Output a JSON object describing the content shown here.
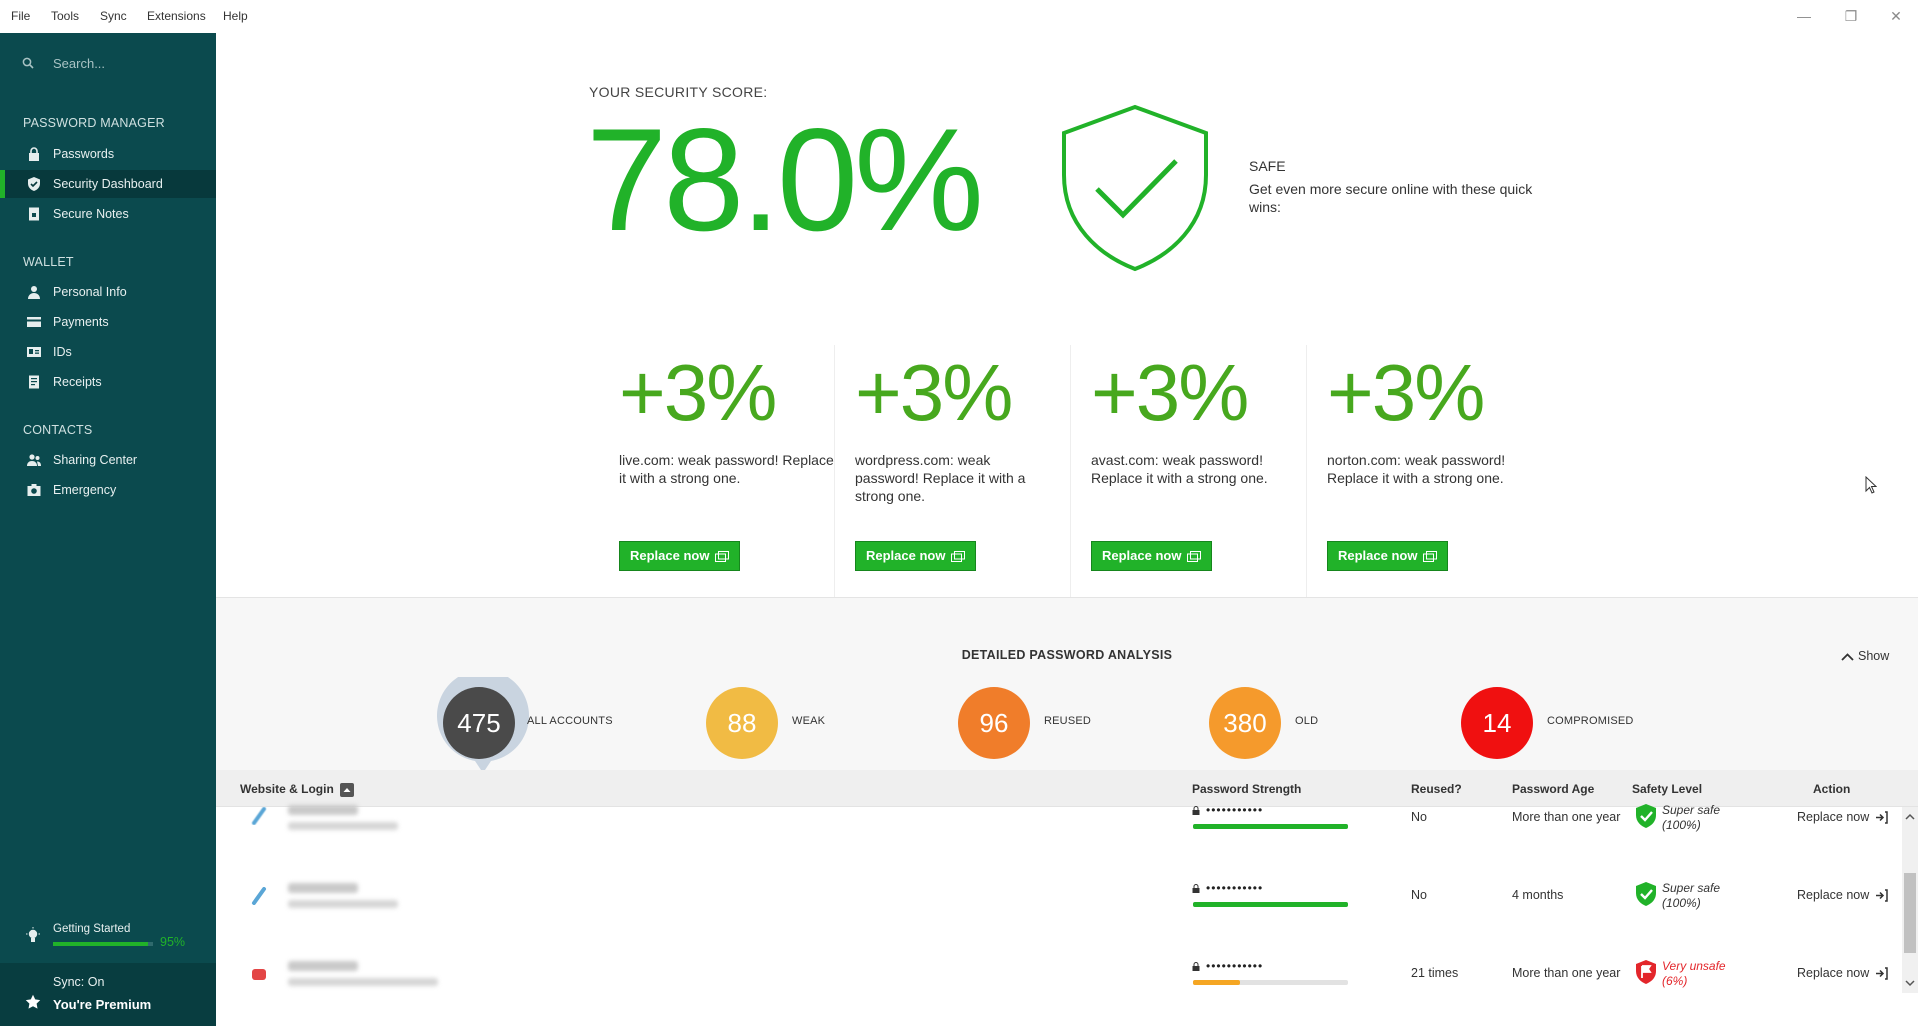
{
  "menu": [
    "File",
    "Tools",
    "Sync",
    "Extensions",
    "Help"
  ],
  "window_controls": {
    "minimize": "—",
    "restore": "❐",
    "close": "✕"
  },
  "sidebar": {
    "search_placeholder": "Search...",
    "sections": [
      {
        "title": "PASSWORD MANAGER",
        "items": [
          {
            "label": "Passwords",
            "icon": "lock-icon"
          },
          {
            "label": "Security Dashboard",
            "icon": "shield-icon",
            "active": true
          },
          {
            "label": "Secure Notes",
            "icon": "note-icon"
          }
        ]
      },
      {
        "title": "WALLET",
        "items": [
          {
            "label": "Personal Info",
            "icon": "person-icon"
          },
          {
            "label": "Payments",
            "icon": "card-icon"
          },
          {
            "label": "IDs",
            "icon": "id-card-icon"
          },
          {
            "label": "Receipts",
            "icon": "receipt-icon"
          }
        ]
      },
      {
        "title": "CONTACTS",
        "items": [
          {
            "label": "Sharing Center",
            "icon": "sharing-icon"
          },
          {
            "label": "Emergency",
            "icon": "emergency-icon"
          }
        ]
      }
    ],
    "getting_started": {
      "label": "Getting Started",
      "percent_text": "95%",
      "progress": 0.95
    },
    "sync_status": "Sync: On",
    "premium": "You're Premium"
  },
  "score": {
    "label": "YOUR SECURITY SCORE:",
    "value": "78.0%",
    "status": "SAFE",
    "subtitle": "Get even more secure online with these quick wins:"
  },
  "quick_wins": [
    {
      "gain": "+3%",
      "text": "live.com: weak password! Replace it with a strong one.",
      "button": "Replace now"
    },
    {
      "gain": "+3%",
      "text": "wordpress.com: weak password! Replace it with a strong one.",
      "button": "Replace now"
    },
    {
      "gain": "+3%",
      "text": "avast.com: weak password! Replace it with a strong one.",
      "button": "Replace now"
    },
    {
      "gain": "+3%",
      "text": "norton.com: weak password! Replace it with a strong one.",
      "button": "Replace now"
    }
  ],
  "analysis": {
    "title": "DETAILED PASSWORD ANALYSIS",
    "toggle": "Show",
    "stats": [
      {
        "value": "475",
        "label": "ALL ACCOUNTS",
        "color": "#4a4a4a"
      },
      {
        "value": "88",
        "label": "WEAK",
        "color": "#f1bb44"
      },
      {
        "value": "96",
        "label": "REUSED",
        "color": "#f07d2a"
      },
      {
        "value": "380",
        "label": "OLD",
        "color": "#f59a2c"
      },
      {
        "value": "14",
        "label": "COMPROMISED",
        "color": "#f01010"
      }
    ]
  },
  "table": {
    "headers": {
      "site": "Website & Login",
      "strength": "Password Strength",
      "reused": "Reused?",
      "age": "Password Age",
      "safety": "Safety Level",
      "action": "Action"
    },
    "rows": [
      {
        "password": "•••••••••••",
        "strength": 1.0,
        "strength_color": "#21b229",
        "reused": "No",
        "age": "More than one year",
        "safety_line1": "Super safe",
        "safety_line2": "(100%)",
        "safety_color": "#333333",
        "shield_color": "#21b229",
        "action": "Replace now",
        "fav_color": "#5aa6d6"
      },
      {
        "password": "•••••••••••",
        "strength": 1.0,
        "strength_color": "#21b229",
        "reused": "No",
        "age": "4 months",
        "safety_line1": "Super safe",
        "safety_line2": "(100%)",
        "safety_color": "#333333",
        "shield_color": "#21b229",
        "action": "Replace now",
        "fav_color": "#5aa6d6"
      },
      {
        "password": "•••••••••••",
        "strength": 0.3,
        "strength_color": "#f5a623",
        "reused": "21 times",
        "age": "More than one year",
        "safety_line1": "Very unsafe",
        "safety_line2": "(6%)",
        "safety_color": "#e3262b",
        "shield_color": "#e3262b",
        "action": "Replace now",
        "fav_color": "#e34545"
      }
    ]
  }
}
